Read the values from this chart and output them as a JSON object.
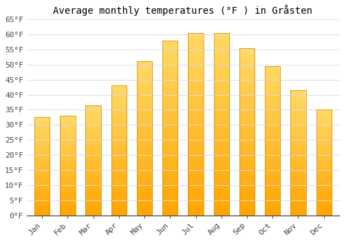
{
  "title": "Average monthly temperatures (°F ) in Gråsten",
  "months": [
    "Jan",
    "Feb",
    "Mar",
    "Apr",
    "May",
    "Jun",
    "Jul",
    "Aug",
    "Sep",
    "Oct",
    "Nov",
    "Dec"
  ],
  "values": [
    32.5,
    33.0,
    36.5,
    43.0,
    51.0,
    58.0,
    60.5,
    60.5,
    55.5,
    49.5,
    41.5,
    35.0
  ],
  "bar_color_main": "#FFA500",
  "bar_color_light": "#FFD966",
  "bar_edge_color": "#CC8800",
  "ylim": [
    0,
    65
  ],
  "yticks": [
    0,
    5,
    10,
    15,
    20,
    25,
    30,
    35,
    40,
    45,
    50,
    55,
    60,
    65
  ],
  "background_color": "#FFFFFF",
  "grid_color": "#DDDDDD",
  "title_fontsize": 10,
  "tick_fontsize": 8
}
